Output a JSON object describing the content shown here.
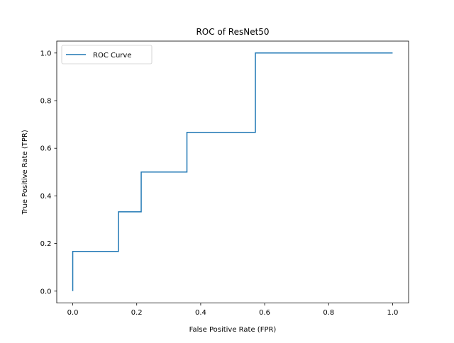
{
  "chart_data": {
    "type": "line",
    "title": "ROC of ResNet50",
    "xlabel": "False Positive Rate (FPR)",
    "ylabel": "True Positive Rate (TPR)",
    "xlim": [
      -0.05,
      1.05
    ],
    "ylim": [
      -0.05,
      1.05
    ],
    "xticks": [
      0.0,
      0.2,
      0.4,
      0.6,
      0.8,
      1.0
    ],
    "yticks": [
      0.0,
      0.2,
      0.4,
      0.6,
      0.8,
      1.0
    ],
    "xtick_labels": [
      "0.0",
      "0.2",
      "0.4",
      "0.6",
      "0.8",
      "1.0"
    ],
    "ytick_labels": [
      "0.0",
      "0.2",
      "0.4",
      "0.6",
      "0.8",
      "1.0"
    ],
    "grid": false,
    "legend_position": "upper-left",
    "series": [
      {
        "name": "ROC Curve",
        "color": "#1f77b4",
        "x": [
          0.0,
          0.0,
          0.143,
          0.143,
          0.214,
          0.214,
          0.357,
          0.357,
          0.571,
          0.571,
          1.0
        ],
        "y": [
          0.0,
          0.167,
          0.167,
          0.333,
          0.333,
          0.5,
          0.5,
          0.667,
          0.667,
          1.0,
          1.0
        ]
      }
    ]
  }
}
